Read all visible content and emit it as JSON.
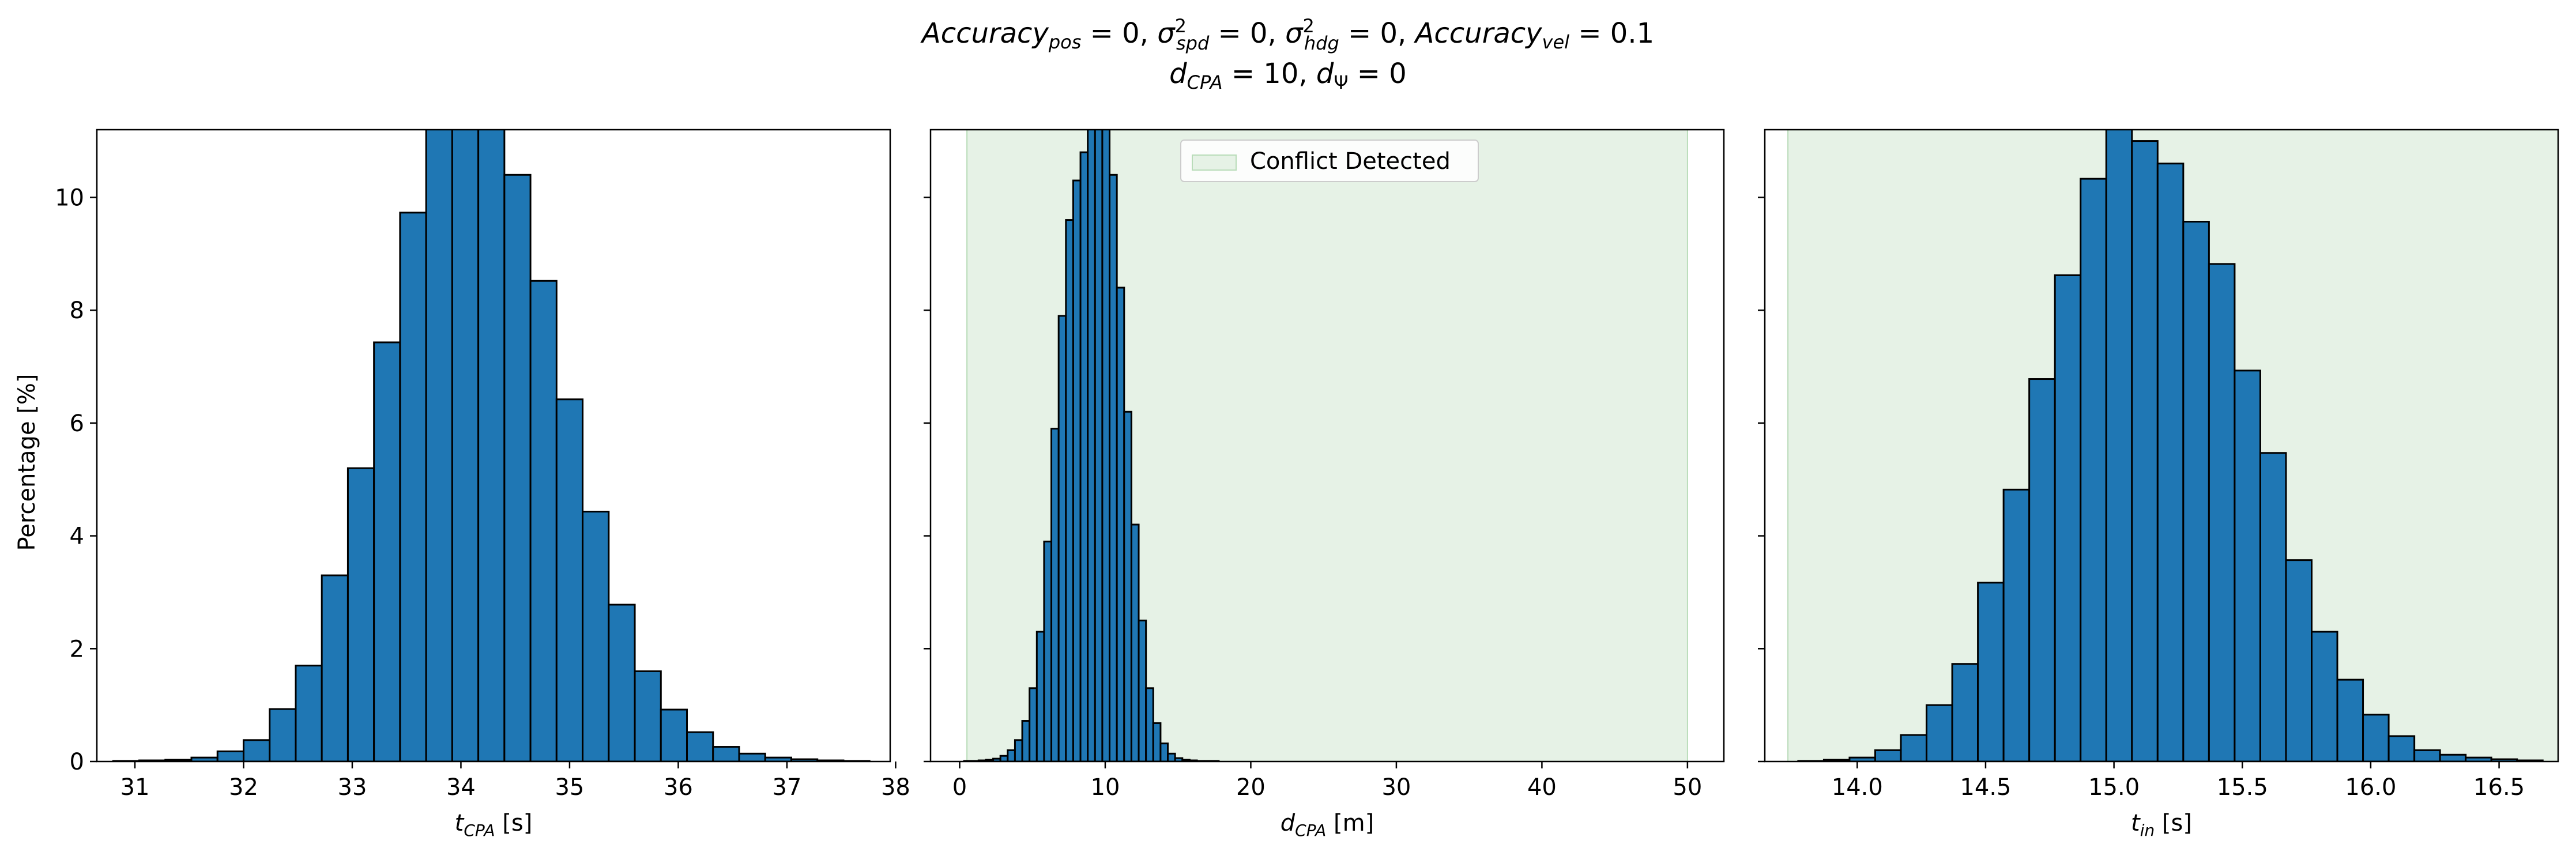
{
  "figure": {
    "title_line1": "Accuracy_pos = 0, σ²_spd = 0, σ²_hdg = 0, Accuracy_vel = 0.1",
    "title_line2": "d_CPA = 10, d_Ψ = 0",
    "ylabel": "Percentage [%]"
  },
  "chart_data": [
    {
      "type": "bar",
      "xlabel": "t_CPA [s]",
      "ylabel": "Percentage [%]",
      "xlim": [
        30.65,
        37.95
      ],
      "ylim": [
        0,
        11.2
      ],
      "xticks": [
        31,
        32,
        33,
        34,
        35,
        36,
        37,
        38
      ],
      "yticks": [
        0,
        2,
        4,
        6,
        8,
        10
      ],
      "bin_edges": [
        30.8,
        31.04,
        31.28,
        31.52,
        31.76,
        32.0,
        32.24,
        32.48,
        32.72,
        32.96,
        33.2,
        33.44,
        33.68,
        33.92,
        34.16,
        34.4,
        34.64,
        34.88,
        35.12,
        35.36,
        35.6,
        35.84,
        36.08,
        36.32,
        36.56,
        36.8,
        37.04,
        37.28,
        37.52,
        37.76
      ],
      "values": [
        0.01,
        0.02,
        0.03,
        0.07,
        0.18,
        0.38,
        0.93,
        1.7,
        3.3,
        5.2,
        7.43,
        9.73,
        11.5,
        12.0,
        11.3,
        10.4,
        8.52,
        6.42,
        4.43,
        2.78,
        1.6,
        0.92,
        0.52,
        0.26,
        0.14,
        0.07,
        0.04,
        0.02,
        0.01
      ],
      "legend": null,
      "shaded_region": null
    },
    {
      "type": "bar",
      "xlabel": "d_CPA [m]",
      "ylabel": "",
      "xlim": [
        -2.0,
        52.5
      ],
      "ylim": [
        0,
        11.2
      ],
      "xticks": [
        0,
        10,
        20,
        30,
        40,
        50
      ],
      "yticks": [
        0,
        2,
        4,
        6,
        8,
        10
      ],
      "bin_edges": [
        0.3,
        0.8,
        1.3,
        1.8,
        2.3,
        2.8,
        3.3,
        3.8,
        4.3,
        4.8,
        5.3,
        5.8,
        6.3,
        6.8,
        7.3,
        7.8,
        8.3,
        8.8,
        9.3,
        9.8,
        10.3,
        10.8,
        11.3,
        11.8,
        12.3,
        12.8,
        13.3,
        13.8,
        14.3,
        14.8,
        15.3,
        15.8,
        16.3,
        16.8,
        17.3,
        17.8,
        18.3,
        18.8,
        19.3,
        19.8,
        20.3,
        20.8,
        21.3
      ],
      "values": [
        0.01,
        0.01,
        0.02,
        0.03,
        0.05,
        0.1,
        0.2,
        0.38,
        0.72,
        1.3,
        2.3,
        3.9,
        5.9,
        7.9,
        9.6,
        10.3,
        10.8,
        11.5,
        12.0,
        11.4,
        10.4,
        8.4,
        6.2,
        4.2,
        2.5,
        1.3,
        0.68,
        0.32,
        0.14,
        0.06,
        0.03,
        0.02,
        0.01,
        0.01,
        0.01,
        0.0,
        0.0,
        0.0,
        0.0,
        0.0,
        0.0,
        0.0
      ],
      "legend": {
        "label": "Conflict Detected",
        "position": "upper center"
      },
      "shaded_region": {
        "x_from": 0.5,
        "x_to": 50,
        "color": "#e6f2e6"
      }
    },
    {
      "type": "bar",
      "xlabel": "t_in [s]",
      "ylabel": "",
      "xlim": [
        13.64,
        16.73
      ],
      "ylim": [
        0,
        11.2
      ],
      "xticks": [
        14.0,
        14.5,
        15.0,
        15.5,
        16.0,
        16.5
      ],
      "xtick_labels": [
        "14.0",
        "14.5",
        "15.0",
        "15.5",
        "16.0",
        "16.5"
      ],
      "yticks": [
        0,
        2,
        4,
        6,
        8,
        10
      ],
      "bin_edges": [
        13.77,
        13.87,
        13.97,
        14.07,
        14.17,
        14.27,
        14.37,
        14.47,
        14.57,
        14.67,
        14.77,
        14.87,
        14.97,
        15.07,
        15.17,
        15.27,
        15.37,
        15.47,
        15.57,
        15.67,
        15.77,
        15.87,
        15.97,
        16.07,
        16.17,
        16.27,
        16.37,
        16.47,
        16.57,
        16.67
      ],
      "values": [
        0.01,
        0.03,
        0.07,
        0.2,
        0.47,
        1.0,
        1.73,
        3.17,
        4.82,
        6.78,
        8.62,
        10.33,
        11.3,
        11.0,
        10.6,
        9.57,
        8.82,
        6.93,
        5.47,
        3.57,
        2.3,
        1.45,
        0.83,
        0.45,
        0.2,
        0.12,
        0.07,
        0.04,
        0.02
      ],
      "legend": null,
      "shaded_region": {
        "x_from": 13.73,
        "x_to": 16.73,
        "color": "#e6f2e6"
      }
    }
  ],
  "colors": {
    "bar_fill": "#1f77b4",
    "bar_edge": "#000000",
    "shade": "#e6f2e6"
  }
}
